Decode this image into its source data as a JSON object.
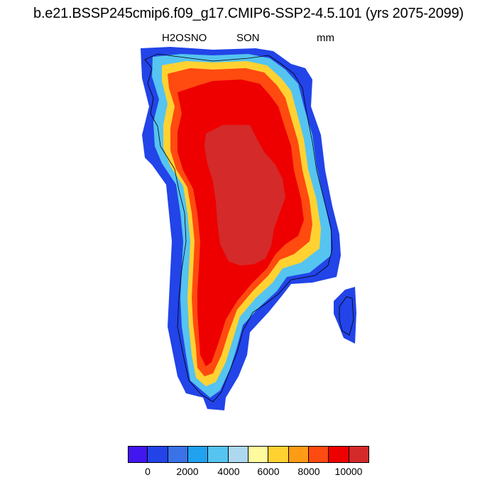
{
  "title": "b.e21.BSSP245cmip6.f09_g17.CMIP6-SSP2-4.5.101 (yrs 2075-2099)",
  "variable": "H2OSNO",
  "season": "SON",
  "units": "mm",
  "colorbar": {
    "colors": [
      "#4216ee",
      "#2244e8",
      "#3a72e8",
      "#20a2f0",
      "#55c4f0",
      "#add8f0",
      "#fffa9e",
      "#ffd232",
      "#ff9b14",
      "#ff4a10",
      "#ee0000",
      "#d42a2a"
    ],
    "labels": [
      "0",
      "2000",
      "4000",
      "6000",
      "8000",
      "10000"
    ]
  }
}
